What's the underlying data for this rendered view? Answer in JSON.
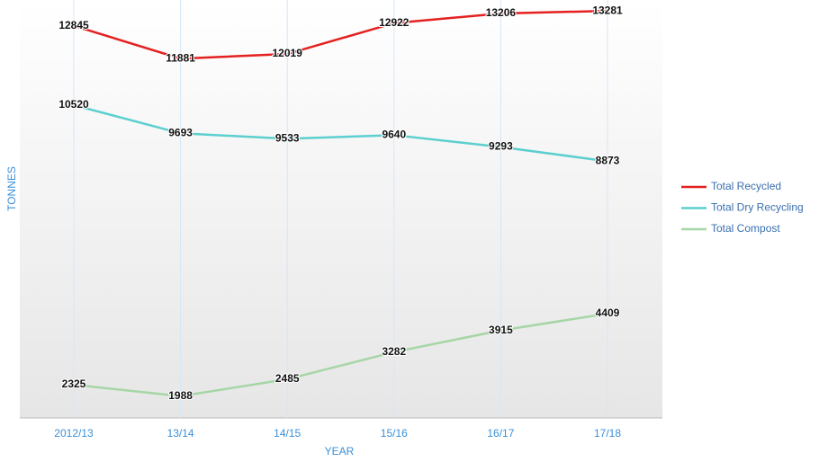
{
  "chart_data": {
    "type": "line",
    "x_label": "YEAR",
    "y_label": "TONNES",
    "categories": [
      "2012/13",
      "13/14",
      "14/15",
      "15/16",
      "16/17",
      "17/18"
    ],
    "series": [
      {
        "name": "Total Recycled",
        "color": "#e42020",
        "values": [
          12845,
          11881,
          12019,
          12922,
          13206,
          13281
        ]
      },
      {
        "name": "Total Dry Recycling",
        "color": "#5ccfcf",
        "values": [
          10520,
          9693,
          9533,
          9640,
          9293,
          8873
        ]
      },
      {
        "name": "Total Compost",
        "color": "#a6d6a6",
        "values": [
          2325,
          1988,
          2485,
          3282,
          3915,
          4409
        ]
      }
    ],
    "ylim": [
      1350,
      13600
    ],
    "grid": true,
    "legend": "right"
  }
}
